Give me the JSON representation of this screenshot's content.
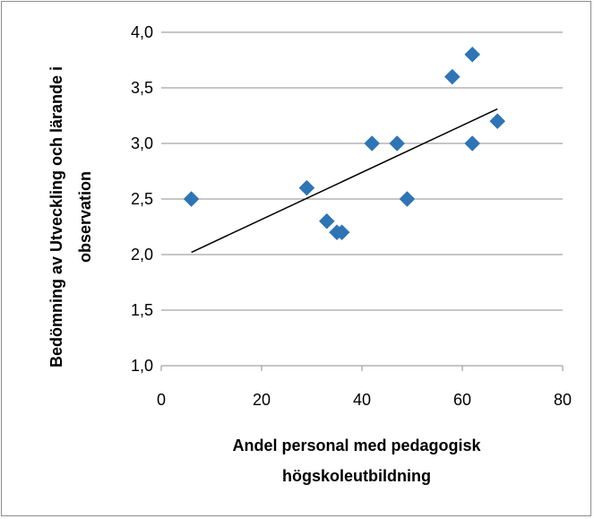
{
  "chart_data": {
    "type": "scatter",
    "title": "",
    "xlabel_lines": [
      "Andel personal med pedagogisk",
      "högskoleutbildning"
    ],
    "ylabel_lines": [
      "Bedömning av Utveckling och lärande i",
      "observation"
    ],
    "xlim": [
      0,
      80
    ],
    "ylim": [
      1.0,
      4.0
    ],
    "x_ticks": [
      0,
      20,
      40,
      60,
      80
    ],
    "x_tick_labels": [
      "0",
      "20",
      "40",
      "60",
      "80"
    ],
    "y_ticks": [
      1.0,
      1.5,
      2.0,
      2.5,
      3.0,
      3.5,
      4.0
    ],
    "y_tick_labels": [
      "1,0",
      "1,5",
      "2,0",
      "2,5",
      "3,0",
      "3,5",
      "4,0"
    ],
    "grid": "horizontal",
    "legend": "none",
    "marker": "diamond",
    "marker_color": "#2e75b6",
    "trendline_color": "#000000",
    "points": [
      {
        "x": 6,
        "y": 2.5
      },
      {
        "x": 29,
        "y": 2.6
      },
      {
        "x": 33,
        "y": 2.3
      },
      {
        "x": 35,
        "y": 2.2
      },
      {
        "x": 36,
        "y": 2.2
      },
      {
        "x": 42,
        "y": 3.0
      },
      {
        "x": 47,
        "y": 3.0
      },
      {
        "x": 49,
        "y": 2.5
      },
      {
        "x": 58,
        "y": 3.6
      },
      {
        "x": 62,
        "y": 3.8
      },
      {
        "x": 62,
        "y": 3.0
      },
      {
        "x": 67,
        "y": 3.2
      }
    ],
    "trendline": {
      "x_start": 6,
      "y_start": 2.02,
      "x_end": 67,
      "y_end": 3.31
    }
  }
}
